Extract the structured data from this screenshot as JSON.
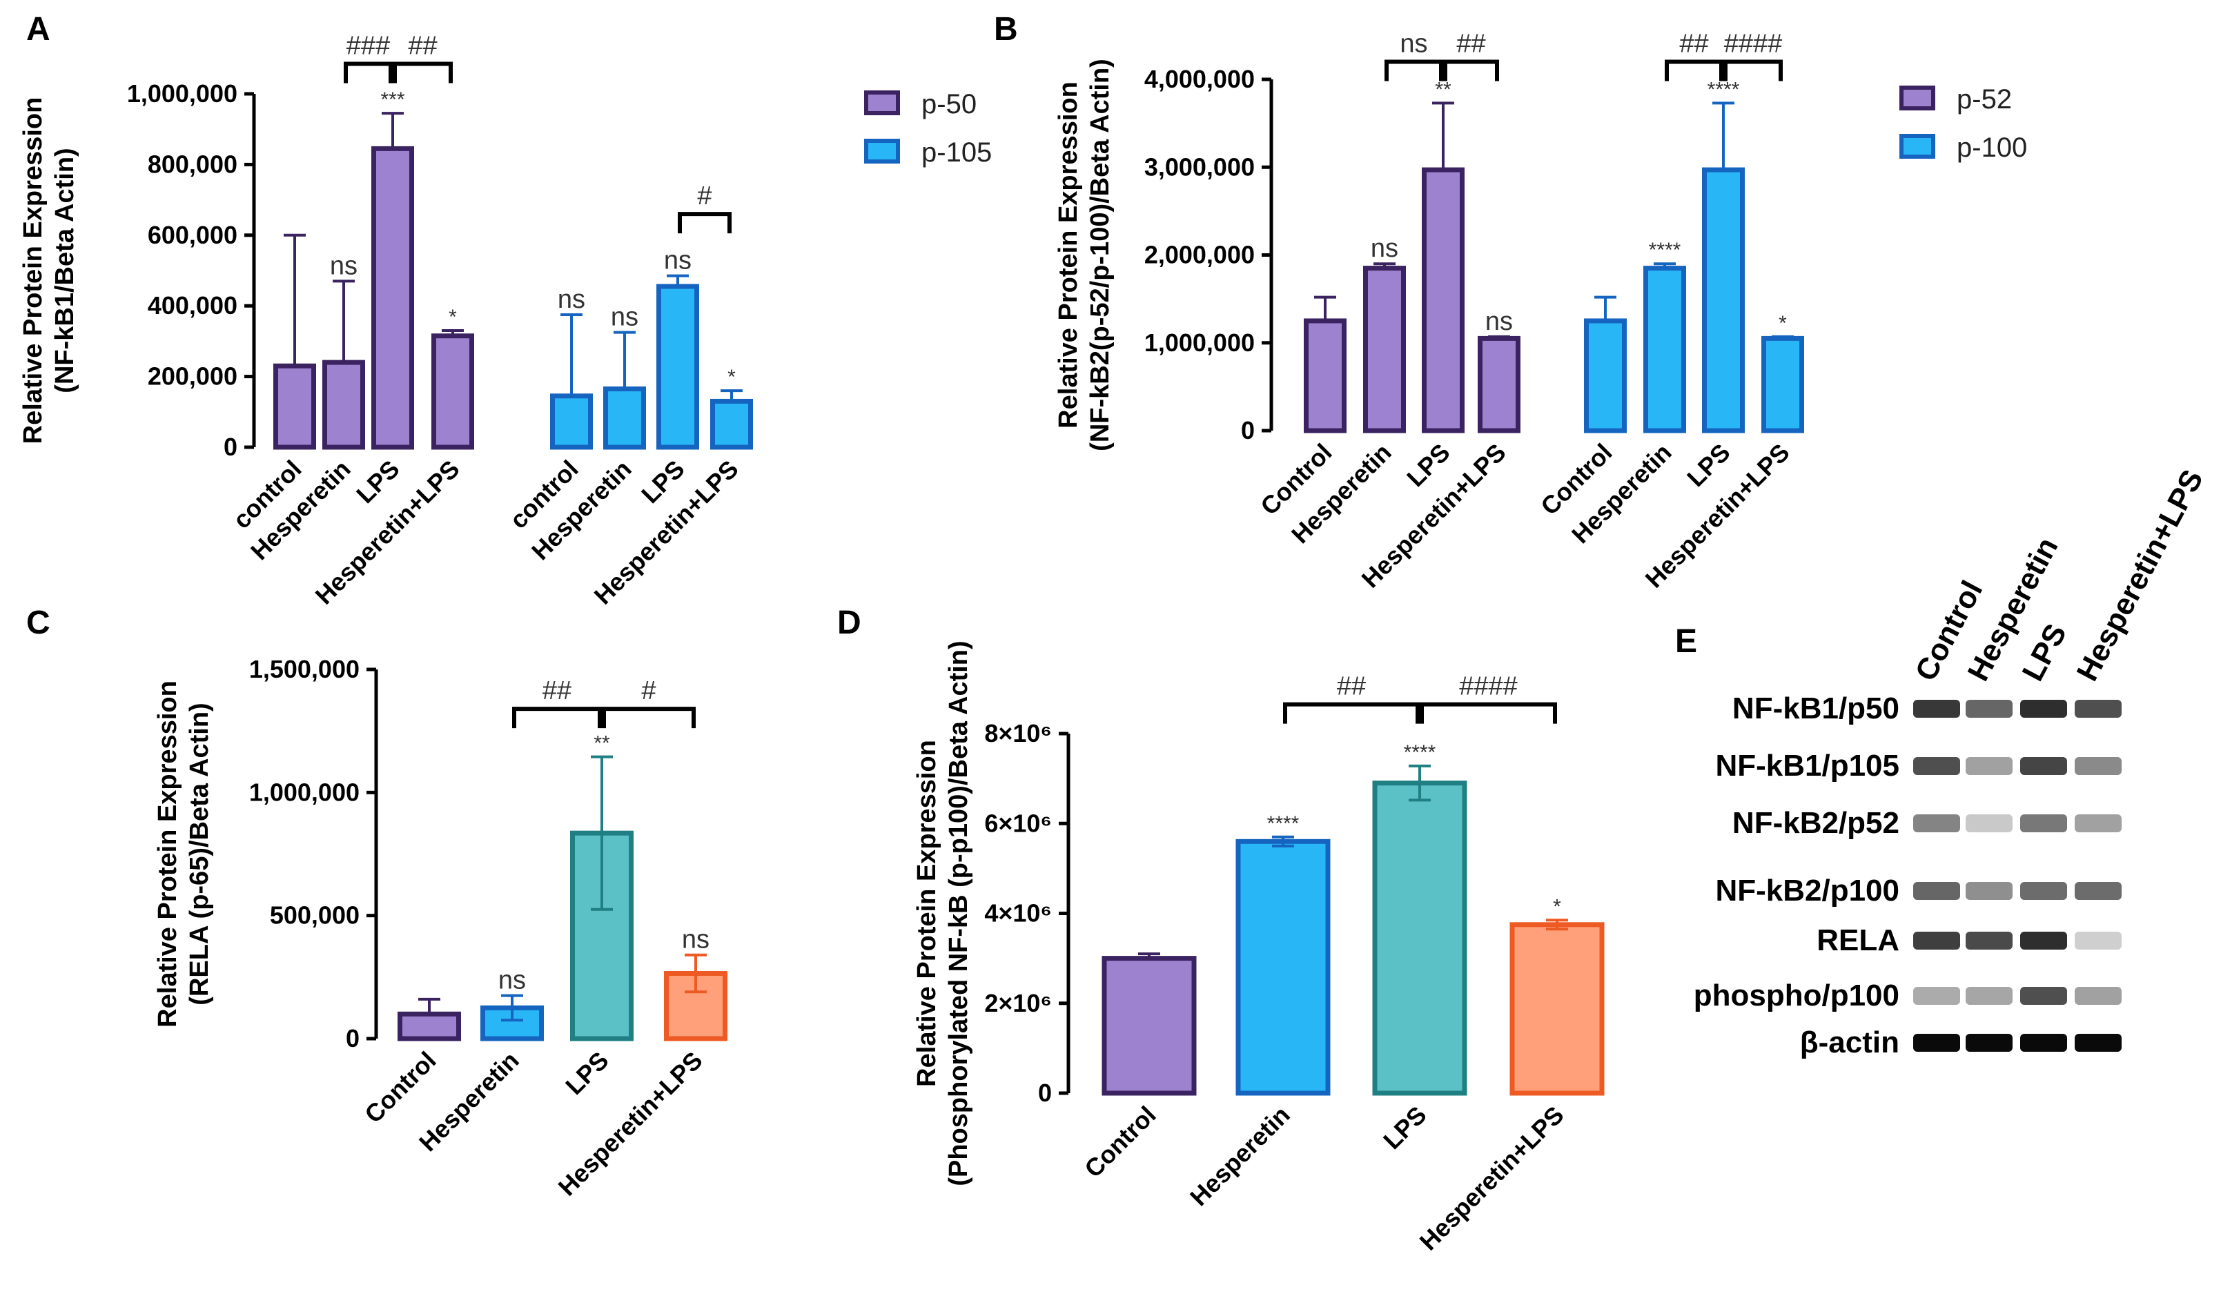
{
  "colors": {
    "purple_fill": "#9d82cf",
    "purple_stroke": "#3a2360",
    "blue_fill": "#29b6f6",
    "blue_stroke": "#1565c0",
    "teal_fill": "#5cc0c7",
    "teal_stroke": "#1f7f82",
    "orange_fill": "#ffa07a",
    "orange_stroke": "#ee5a24",
    "sig_text": "#333333"
  },
  "chart_data": [
    {
      "panel": "A",
      "type": "bar",
      "ylabel": [
        "Relative Protein Expression",
        "(NF-kB1/Beta Actin)"
      ],
      "ylim": [
        0,
        1000000
      ],
      "yticks": [
        0,
        200000,
        400000,
        600000,
        800000,
        1000000
      ],
      "ytick_labels": [
        "0",
        "200,000",
        "400,000",
        "600,000",
        "800,000",
        "1,000,000"
      ],
      "categories": [
        "control",
        "Hesperetin",
        "LPS",
        "Hesperetin+LPS"
      ],
      "legend": "right",
      "series": [
        {
          "name": "p-50",
          "color": "purple",
          "values": [
            230000,
            240000,
            845000,
            315000
          ],
          "errors": [
            370000,
            230000,
            100000,
            15000
          ],
          "stars": [
            "",
            "ns",
            "***",
            "*"
          ]
        },
        {
          "name": "p-105",
          "color": "blue",
          "values": [
            145000,
            165000,
            455000,
            130000
          ],
          "errors": [
            230000,
            160000,
            30000,
            30000
          ],
          "stars": [
            "ns",
            "ns",
            "ns",
            "*"
          ]
        }
      ],
      "brackets": [
        {
          "series": 0,
          "from": 1,
          "to": 2,
          "label": "###",
          "y": 1085000
        },
        {
          "series": 0,
          "from": 2,
          "to": 3,
          "label": "##",
          "y": 1085000
        },
        {
          "series": 1,
          "from": 2,
          "to": 3,
          "label": "#",
          "y": 660000
        }
      ]
    },
    {
      "panel": "B",
      "type": "bar",
      "ylabel": [
        "Relative Protein Expression",
        "(NF-kB2(p-52/p-100)/Beta Actin)"
      ],
      "ylim": [
        0,
        4000000
      ],
      "yticks": [
        0,
        1000000,
        2000000,
        3000000,
        4000000
      ],
      "ytick_labels": [
        "0",
        "1,000,000",
        "2,000,000",
        "3,000,000",
        "4,000,000"
      ],
      "categories": [
        "Control",
        "Hesperetin",
        "LPS",
        "Hesperetin+LPS"
      ],
      "legend": "right",
      "series": [
        {
          "name": "p-52",
          "color": "purple",
          "values": [
            1250000,
            1850000,
            2970000,
            1050000
          ],
          "errors": [
            270000,
            50000,
            760000,
            20000
          ],
          "stars": [
            "",
            "ns",
            "**",
            "ns"
          ]
        },
        {
          "name": "p-100",
          "color": "blue",
          "values": [
            1250000,
            1850000,
            2970000,
            1050000
          ],
          "errors": [
            270000,
            50000,
            760000,
            20000
          ],
          "stars": [
            "",
            "****",
            "****",
            "*"
          ]
        }
      ],
      "brackets": [
        {
          "series": 0,
          "from": 1,
          "to": 2,
          "label": "ns",
          "y": 4200000
        },
        {
          "series": 0,
          "from": 2,
          "to": 3,
          "label": "##",
          "y": 4200000
        },
        {
          "series": 1,
          "from": 1,
          "to": 2,
          "label": "##",
          "y": 4200000
        },
        {
          "series": 1,
          "from": 2,
          "to": 3,
          "label": "####",
          "y": 4200000
        }
      ]
    },
    {
      "panel": "C",
      "type": "bar",
      "ylabel": [
        "Relative Protein Expression",
        "(RELA (p-65)/Beta Actin)"
      ],
      "ylim": [
        0,
        1500000
      ],
      "yticks": [
        0,
        500000,
        1000000,
        1500000
      ],
      "ytick_labels": [
        "0",
        "500,000",
        "1,000,000",
        "1,500,000"
      ],
      "categories": [
        "Control",
        "Hesperetin",
        "LPS",
        "Hesperetin+LPS"
      ],
      "colors": [
        "purple",
        "blue",
        "teal",
        "orange"
      ],
      "values": [
        100000,
        125000,
        835000,
        265000
      ],
      "errors": [
        60000,
        50000,
        310000,
        75000
      ],
      "stars": [
        "",
        "ns",
        "**",
        "ns"
      ],
      "brackets": [
        {
          "from": 1,
          "to": 2,
          "label": "##",
          "y": 1340000
        },
        {
          "from": 2,
          "to": 3,
          "label": "#",
          "y": 1340000
        }
      ]
    },
    {
      "panel": "D",
      "type": "bar",
      "ylabel": [
        "Relative Protein Expression",
        "(Phosphorylated  NF-kB (p-p100)/Beta Actin)"
      ],
      "ylim": [
        0,
        8000000
      ],
      "yticks": [
        0,
        2000000,
        4000000,
        6000000,
        8000000
      ],
      "ytick_labels": [
        "0",
        "2×10⁶",
        "4×10⁶",
        "6×10⁶",
        "8×10⁶"
      ],
      "categories": [
        "Control",
        "Hesperetin",
        "LPS",
        "Hesperetin+LPS"
      ],
      "colors": [
        "purple",
        "blue",
        "teal",
        "orange"
      ],
      "values": [
        3000000,
        5600000,
        6900000,
        3750000
      ],
      "errors": [
        100000,
        100000,
        380000,
        100000
      ],
      "stars": [
        "",
        "****",
        "****",
        "*"
      ],
      "brackets": [
        {
          "from": 1,
          "to": 2,
          "label": "##",
          "y": 8650000
        },
        {
          "from": 2,
          "to": 3,
          "label": "####",
          "y": 8650000
        }
      ]
    }
  ],
  "blot": {
    "panel": "E",
    "columns": [
      "Control",
      "Hesperetin",
      "LPS",
      "Hesperetin+LPS"
    ],
    "rows": [
      {
        "label": "NF-kB1/p50",
        "intensity": [
          0.78,
          0.58,
          0.82,
          0.68
        ]
      },
      {
        "label": "NF-kB1/p105",
        "intensity": [
          0.68,
          0.32,
          0.72,
          0.42
        ]
      },
      {
        "label": "NF-kB2/p52",
        "intensity": [
          0.45,
          0.15,
          0.5,
          0.32
        ]
      },
      {
        "label": "NF-kB2/p100",
        "intensity": [
          0.58,
          0.4,
          0.55,
          0.55
        ]
      },
      {
        "label": "RELA",
        "intensity": [
          0.75,
          0.7,
          0.82,
          0.12
        ]
      },
      {
        "label": "phospho/p100",
        "intensity": [
          0.28,
          0.3,
          0.68,
          0.32
        ]
      },
      {
        "label": "β-actin",
        "intensity": [
          0.98,
          0.98,
          0.98,
          0.98
        ]
      }
    ]
  }
}
